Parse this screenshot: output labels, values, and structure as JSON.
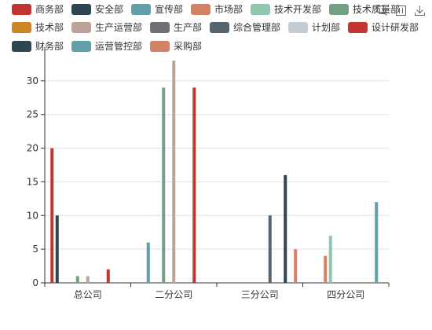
{
  "legend": {
    "items": [
      {
        "label": "商务部",
        "color": "#c23531"
      },
      {
        "label": "安全部",
        "color": "#2f4554"
      },
      {
        "label": "宣传部",
        "color": "#61a0a8"
      },
      {
        "label": "市场部",
        "color": "#d48265"
      },
      {
        "label": "技术开发部",
        "color": "#91c7ae"
      },
      {
        "label": "技术质量部",
        "color": "#749f83"
      },
      {
        "label": "技术部",
        "color": "#ca8622"
      },
      {
        "label": "生产运营部",
        "color": "#bda29a"
      },
      {
        "label": "生产部",
        "color": "#6e7074"
      },
      {
        "label": "综合管理部",
        "color": "#546570"
      },
      {
        "label": "计划部",
        "color": "#c4ccd3"
      },
      {
        "label": "设计研发部",
        "color": "#c23531"
      },
      {
        "label": "财务部",
        "color": "#2f4554"
      },
      {
        "label": "运营管控部",
        "color": "#61a0a8"
      },
      {
        "label": "采购部",
        "color": "#d48265"
      }
    ]
  },
  "toolbox": {
    "icons": [
      "zoom-icon",
      "data-view-icon",
      "download-icon"
    ]
  },
  "chart_data": {
    "type": "bar",
    "categories": [
      "总公司",
      "二分公司",
      "三分公司",
      "四分公司"
    ],
    "ylim": [
      0,
      35
    ],
    "yticks": [
      0,
      5,
      10,
      15,
      20,
      25,
      30
    ],
    "grid": true,
    "legend_position": "top",
    "series": [
      {
        "name": "商务部",
        "color": "#c23531",
        "values": [
          20,
          null,
          null,
          null
        ]
      },
      {
        "name": "安全部",
        "color": "#2f4554",
        "values": [
          10,
          null,
          null,
          null
        ]
      },
      {
        "name": "宣传部",
        "color": "#61a0a8",
        "values": [
          null,
          6,
          null,
          null
        ]
      },
      {
        "name": "市场部",
        "color": "#d48265",
        "values": [
          null,
          null,
          null,
          4
        ]
      },
      {
        "name": "技术开发部",
        "color": "#91c7ae",
        "values": [
          null,
          null,
          null,
          7
        ]
      },
      {
        "name": "技术质量部",
        "color": "#749f83",
        "values": [
          1,
          29,
          null,
          null
        ]
      },
      {
        "name": "技术部",
        "color": "#ca8622",
        "values": [
          null,
          null,
          null,
          null
        ]
      },
      {
        "name": "生产运营部",
        "color": "#bda29a",
        "values": [
          1,
          33,
          null,
          null
        ]
      },
      {
        "name": "生产部",
        "color": "#6e7074",
        "values": [
          null,
          null,
          null,
          null
        ]
      },
      {
        "name": "综合管理部",
        "color": "#546570",
        "values": [
          null,
          null,
          10,
          null
        ]
      },
      {
        "name": "计划部",
        "color": "#c4ccd3",
        "values": [
          null,
          null,
          null,
          null
        ]
      },
      {
        "name": "设计研发部",
        "color": "#c23531",
        "values": [
          2,
          29,
          null,
          null
        ]
      },
      {
        "name": "财务部",
        "color": "#2f4554",
        "values": [
          null,
          null,
          16,
          null
        ]
      },
      {
        "name": "运营管控部",
        "color": "#61a0a8",
        "values": [
          null,
          null,
          null,
          12
        ]
      },
      {
        "name": "采购部",
        "color": "#d48265",
        "values": [
          null,
          null,
          5,
          null
        ]
      }
    ]
  }
}
